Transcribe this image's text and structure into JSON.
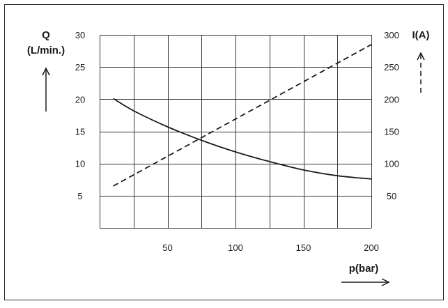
{
  "chart_data": {
    "type": "line",
    "x_axis": {
      "label": "p(bar)",
      "range": [
        0,
        200
      ],
      "ticks": [
        50,
        100,
        150,
        200
      ],
      "grid_step": 25
    },
    "y_left": {
      "label_line1": "Q",
      "label_line2": "(L/min.)",
      "range": [
        0,
        30
      ],
      "ticks": [
        5,
        10,
        15,
        20,
        25,
        30
      ]
    },
    "y_right": {
      "label": "I(A)",
      "range": [
        0,
        300
      ],
      "ticks": [
        50,
        100,
        150,
        200,
        250,
        300
      ]
    },
    "grid": true,
    "series": [
      {
        "axis": "left",
        "line_style": "solid",
        "color": "#1a1a1a",
        "x": [
          10,
          25,
          50,
          75,
          100,
          125,
          150,
          175,
          200
        ],
        "y": [
          20.1,
          18.2,
          15.7,
          13.6,
          11.8,
          10.3,
          9.0,
          8.1,
          7.6
        ]
      },
      {
        "axis": "right",
        "line_style": "dashed",
        "color": "#1a1a1a",
        "x": [
          10,
          200
        ],
        "y": [
          65,
          285
        ]
      }
    ]
  }
}
